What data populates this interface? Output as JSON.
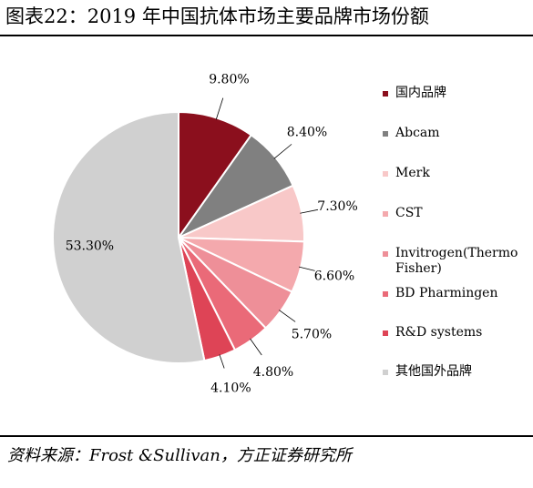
{
  "title": "图表22：2019 年中国抗体市场主要品牌市场份额",
  "source": "资料来源：Frost &Sullivan，方正证券研究所",
  "chart_data": {
    "type": "pie",
    "categories": [
      "国内品牌",
      "Abcam",
      "Merk",
      "CST",
      "Invitrogen(Thermo Fisher)",
      "BD Pharmingen",
      "R&D systems",
      "其他国外品牌"
    ],
    "values": [
      9.8,
      8.4,
      7.3,
      6.6,
      5.7,
      4.8,
      4.1,
      53.3
    ],
    "data_labels": [
      "9.80%",
      "8.40%",
      "7.30%",
      "6.60%",
      "5.70%",
      "4.80%",
      "4.10%",
      "53.30%"
    ],
    "colors": [
      "#8b0f1d",
      "#808080",
      "#f8c8c8",
      "#f4a9ad",
      "#ee8f98",
      "#ea6a78",
      "#de4456",
      "#d0d0d0"
    ],
    "legend_position": "right",
    "start_angle_deg": 0,
    "direction": "clockwise"
  }
}
